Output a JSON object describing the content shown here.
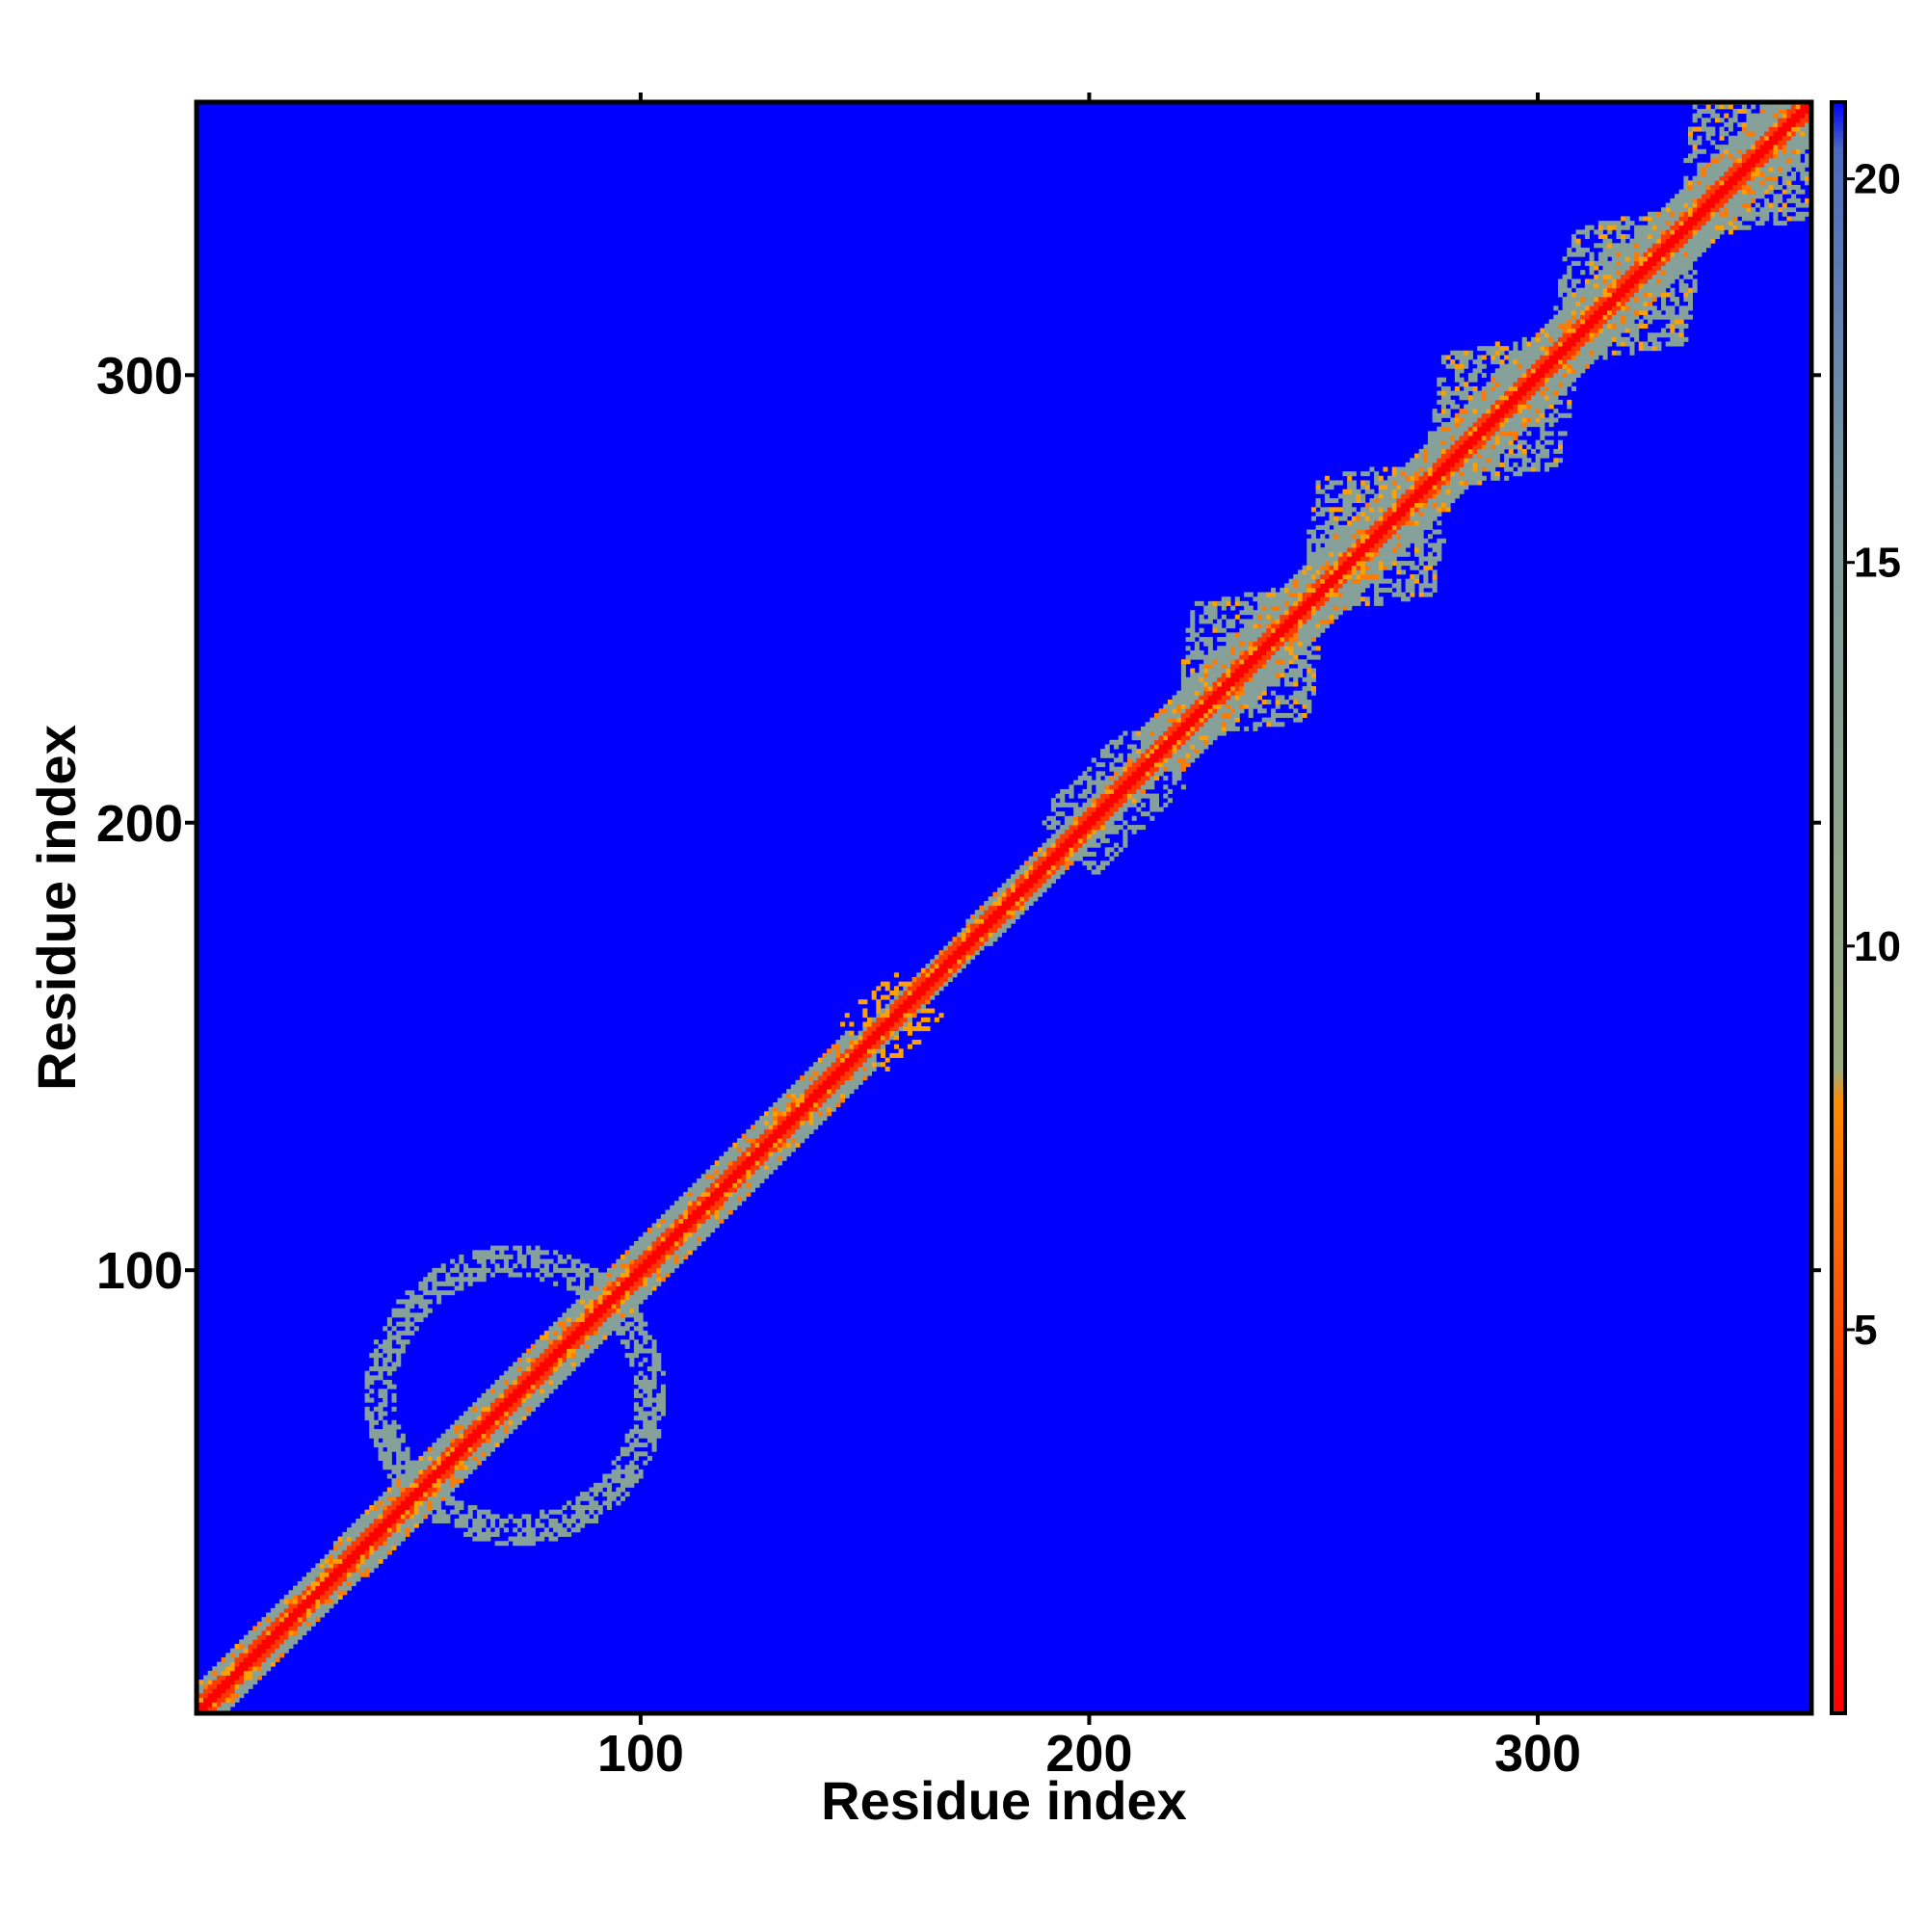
{
  "chart_data": {
    "type": "heatmap",
    "title": "",
    "xlabel": "Residue index",
    "ylabel": "Residue index",
    "xlim": [
      1,
      361
    ],
    "ylim": [
      1,
      361
    ],
    "x_ticks": [
      100,
      200,
      300
    ],
    "y_ticks": [
      100,
      200,
      300
    ],
    "grid": false,
    "colorbar": {
      "ticks": [
        5,
        10,
        15,
        20
      ],
      "range": [
        0,
        21
      ],
      "placement": "right",
      "colors": [
        "#ff0000",
        "#ff5a00",
        "#ffa000",
        "#9aab7e",
        "#6c8cab",
        "#0000ff"
      ]
    },
    "background_color": "#0000ff",
    "description_values": {
      "diagonal_value": 1,
      "near_diagonal_value": 6,
      "contact_value": 13,
      "no_contact_value": 21
    },
    "contact_regions": [
      {
        "x_range": [
          40,
          110
        ],
        "y_range": [
          40,
          110
        ],
        "note": "ring-like off-diagonal contacts"
      },
      {
        "x_range": [
          222,
          262
        ],
        "y_range": [
          222,
          262
        ]
      },
      {
        "x_range": [
          250,
          290
        ],
        "y_range": [
          250,
          290
        ]
      },
      {
        "x_range": [
          280,
          320
        ],
        "y_range": [
          280,
          320
        ]
      },
      {
        "x_range": [
          305,
          345
        ],
        "y_range": [
          305,
          345
        ]
      },
      {
        "x_range": [
          330,
          361
        ],
        "y_range": [
          330,
          361
        ]
      }
    ]
  }
}
